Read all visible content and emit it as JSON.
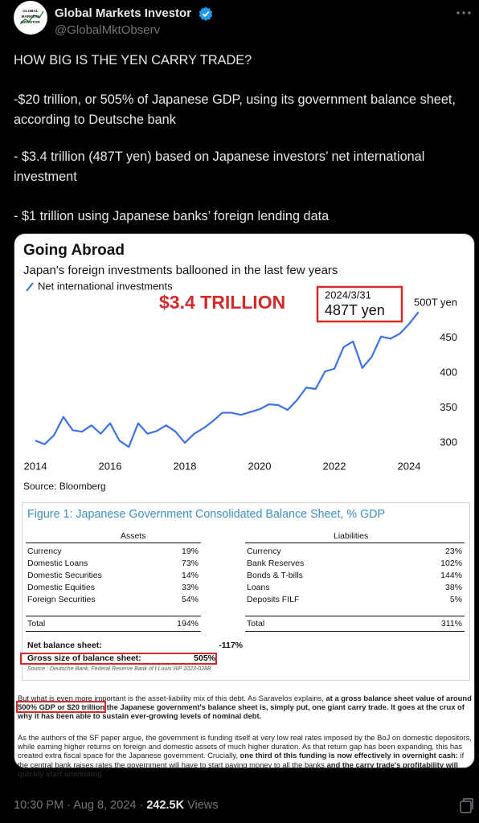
{
  "author": {
    "avatar_text": "GLOBAL MARKETS INVESTOR",
    "name": "Global Markets Investor",
    "handle": "@GlobalMktObserv"
  },
  "tweet": {
    "paragraphs": [
      "HOW BIG IS THE YEN CARRY TRADE?",
      "-$20 trillion, or 505% of Japanese GDP, using its government balance sheet, according to Deutsche bank",
      "- $3.4 trillion (487T yen) based on Japanese investors’ net international investment",
      "- $1 trillion using Japanese banks’ foreign lending data"
    ]
  },
  "chart_data": {
    "type": "line",
    "title": "Going Abroad",
    "subtitle": "Japan's foreign investments ballooned in the last few years",
    "source": "Source: Bloomberg",
    "annotations": {
      "headline": "$3.4 TRILLION",
      "date": "2024/3/31",
      "value": "487T yen"
    },
    "x": [
      2014,
      2014.25,
      2014.5,
      2014.75,
      2015,
      2015.25,
      2015.5,
      2015.75,
      2016,
      2016.25,
      2016.5,
      2016.75,
      2017,
      2017.25,
      2017.5,
      2017.75,
      2018,
      2018.25,
      2018.5,
      2018.75,
      2019,
      2019.25,
      2019.5,
      2019.75,
      2020,
      2020.25,
      2020.5,
      2020.75,
      2021,
      2021.25,
      2021.5,
      2021.75,
      2022,
      2022.25,
      2022.5,
      2022.75,
      2023,
      2023.25,
      2023.5,
      2023.75,
      2024,
      2024.25
    ],
    "series": [
      {
        "name": "Net international investments",
        "color": "#3d72e6",
        "values": [
          303,
          298,
          311,
          337,
          318,
          316,
          325,
          313,
          328,
          303,
          294,
          328,
          313,
          317,
          325,
          316,
          300,
          313,
          321,
          331,
          343,
          343,
          340,
          344,
          348,
          355,
          354,
          347,
          361,
          379,
          377,
          402,
          406,
          437,
          445,
          407,
          423,
          452,
          449,
          456,
          470,
          487
        ]
      }
    ],
    "xlim": [
      2013.9,
      2024.5
    ],
    "xticks": [
      2014,
      2016,
      2018,
      2020,
      2022,
      2024
    ],
    "ylim": [
      285,
      510
    ],
    "yticks": [
      300,
      350,
      400,
      450,
      {
        "value": 500,
        "label": "500T yen"
      }
    ],
    "grid": false
  },
  "figure": {
    "title": "Figure 1: Japanese Government Consolidated Balance Sheet, % GDP",
    "assets_header": "Assets",
    "liabilities_header": "Liabilities",
    "rows": [
      [
        "Currency",
        "19%",
        "Currency",
        "23%"
      ],
      [
        "Domestic Loans",
        "73%",
        "Bank Reserves",
        "102%"
      ],
      [
        "Domestic Securities",
        "14%",
        "Bonds & T-bills",
        "144%"
      ],
      [
        "Domestic Equities",
        "33%",
        "Loans",
        "38%"
      ],
      [
        "Foreign Securities",
        "54%",
        "Deposits FILF",
        "5%"
      ]
    ],
    "total": [
      "Total",
      "194%",
      "Total",
      "311%"
    ],
    "net": [
      "Net balance sheet:",
      "-117%"
    ],
    "gross": [
      "Gross size of balance sheet:",
      "505%"
    ],
    "source": "Source : Deutsche Bank, Federal Reserve Bank of t Louis WP 2023-028B"
  },
  "article": {
    "paragraphs": [
      [
        {
          "text": "But what is even more important is the asset-liability mix of this debt. As Saravelos explains, ",
          "bold": false
        },
        {
          "text": "at a gross balance sheet value of around ",
          "bold": true
        },
        {
          "text": "500% GDP or $20 trillion",
          "bold": true,
          "boxed": true
        },
        {
          "text": " the Japanese government's balance sheet is, simply put, one giant carry trade. It goes at the crux of why it has been able to sustain ever-growing levels of nominal debt.",
          "bold": true
        }
      ],
      [
        {
          "text": "As the authors of the SF paper argue, the government is funding itself at very low real rates imposed by the BoJ on domestic depositors, while earning higher returns on foreign and domestic assets of much higher duration. As that return gap has been expanding, this has created extra fiscal space for the Japanese government. Crucially, ",
          "bold": false
        },
        {
          "text": "one third of this funding is now effectively in overnight cash:",
          "bold": true
        },
        {
          "text": " if the central bank raises rates the government will have to start paying money to all the banks ",
          "bold": false
        },
        {
          "text": "and the carry trade's profitability will quickly start unwinding.",
          "bold": true
        }
      ]
    ]
  },
  "footer": {
    "time": "10:30 PM",
    "separator": "·",
    "date": "Aug 8, 2024",
    "views": "242.5K",
    "views_label": "Views"
  }
}
